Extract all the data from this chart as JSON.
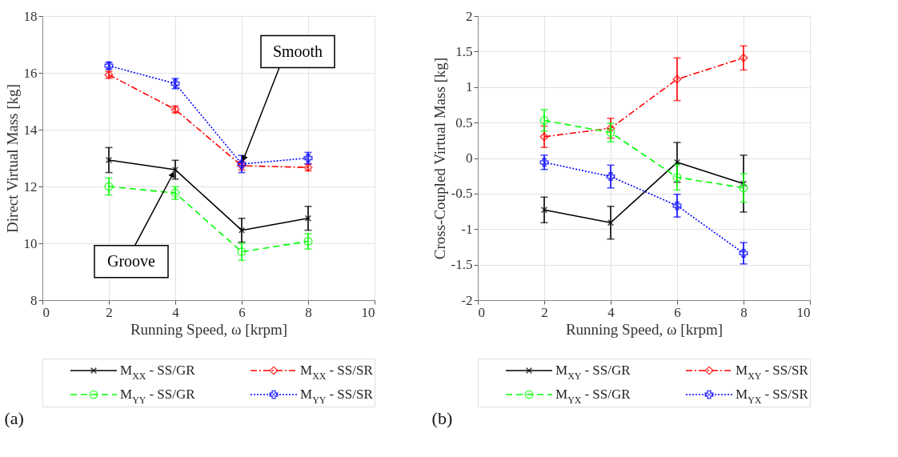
{
  "chart_data": [
    {
      "type": "line",
      "title": "(a)",
      "xlabel": "Running Speed, ω [krpm]",
      "ylabel": "Direct Virtual Mass [kg]",
      "xlim": [
        0,
        10
      ],
      "xticks": [
        0,
        2,
        4,
        6,
        8,
        10
      ],
      "ylim": [
        8,
        18
      ],
      "yticks": [
        8,
        10,
        12,
        14,
        16,
        18
      ],
      "grid": true,
      "legend": "bottom",
      "x": [
        2,
        4,
        6,
        8
      ],
      "series": [
        {
          "name": "M$_{XX}$ - SS/GR",
          "color": "#000000",
          "marker": "x",
          "line_style": "solid",
          "values": [
            12.93,
            12.59,
            10.46,
            10.88
          ],
          "errors": [
            0.44,
            0.33,
            0.42,
            0.42
          ]
        },
        {
          "name": "M$_{XX}$ - SS/SR",
          "color": "#ff0000",
          "marker": "diamond",
          "line_style": "dashdot",
          "values": [
            15.93,
            14.71,
            12.73,
            12.67
          ],
          "errors": [
            0.12,
            0.12,
            0.15,
            0.12
          ]
        },
        {
          "name": "M$_{YY}$ - SS/GR",
          "color": "#00ff00",
          "marker": "circle",
          "line_style": "dashed",
          "values": [
            12.0,
            11.77,
            9.7,
            10.07
          ],
          "errors": [
            0.3,
            0.22,
            0.3,
            0.27
          ]
        },
        {
          "name": "M$_{YY}$ - SS/SR",
          "color": "#0000ff",
          "marker": "cross",
          "line_style": "dotted",
          "values": [
            16.25,
            15.62,
            12.79,
            13.0
          ],
          "errors": [
            0.12,
            0.18,
            0.3,
            0.2
          ]
        }
      ],
      "annotations": [
        {
          "text": "Smooth",
          "x": 6,
          "y": 12.8
        },
        {
          "text": "Groove",
          "x": 4,
          "y": 12.6
        }
      ]
    },
    {
      "type": "line",
      "title": "(b)",
      "xlabel": "Running Speed, ω [krpm]",
      "ylabel": "Cross-Coupled Virtual Mass [kg]",
      "xlim": [
        0,
        10
      ],
      "xticks": [
        0,
        2,
        4,
        6,
        8,
        10
      ],
      "ylim": [
        -2,
        2
      ],
      "yticks": [
        -2,
        -1.5,
        -1,
        -0.5,
        0,
        0.5,
        1,
        1.5,
        2
      ],
      "grid": true,
      "legend": "bottom",
      "x": [
        2,
        4,
        6,
        8
      ],
      "series": [
        {
          "name": "M$_{XY}$ - SS/GR",
          "color": "#000000",
          "marker": "x",
          "line_style": "solid",
          "values": [
            -0.73,
            -0.91,
            -0.06,
            -0.36
          ],
          "errors": [
            0.18,
            0.23,
            0.28,
            0.4
          ]
        },
        {
          "name": "M$_{XY}$ - SS/SR",
          "color": "#ff0000",
          "marker": "diamond",
          "line_style": "dashdot",
          "values": [
            0.3,
            0.42,
            1.11,
            1.41
          ],
          "errors": [
            0.15,
            0.14,
            0.3,
            0.17
          ]
        },
        {
          "name": "M$_{YX}$ - SS/GR",
          "color": "#00ff00",
          "marker": "circle",
          "line_style": "dashed",
          "values": [
            0.53,
            0.36,
            -0.27,
            -0.42
          ],
          "errors": [
            0.15,
            0.13,
            0.18,
            0.2
          ]
        },
        {
          "name": "M$_{YX}$ - SS/SR",
          "color": "#0000ff",
          "marker": "cross",
          "line_style": "dotted",
          "values": [
            -0.06,
            -0.26,
            -0.67,
            -1.34
          ],
          "errors": [
            0.1,
            0.16,
            0.16,
            0.15
          ]
        }
      ]
    }
  ]
}
